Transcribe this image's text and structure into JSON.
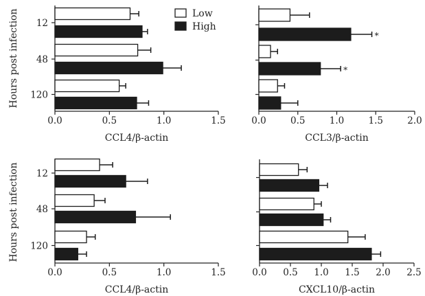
{
  "figure": {
    "ylabel": "Hours post infection",
    "legend": {
      "items": [
        "Low",
        "High"
      ],
      "placement": "top-left panel, upper right"
    }
  },
  "chart_data": [
    {
      "type": "bar",
      "orientation": "horizontal",
      "categories": [
        "12",
        "48",
        "120"
      ],
      "xlabel": "CCL4/β-actin",
      "ylabel": "Hours post infection",
      "xlim": [
        0,
        1.5
      ],
      "xticks": [
        "0.0",
        "0.5",
        "1.0",
        "1.5"
      ],
      "series": [
        {
          "name": "Low",
          "values": [
            0.69,
            0.76,
            0.59
          ],
          "errors": [
            0.08,
            0.12,
            0.06
          ]
        },
        {
          "name": "High",
          "values": [
            0.8,
            0.99,
            0.75
          ],
          "errors": [
            0.05,
            0.17,
            0.11
          ]
        }
      ],
      "annotations": []
    },
    {
      "type": "bar",
      "orientation": "horizontal",
      "categories": [
        "12",
        "48",
        "120"
      ],
      "xlabel": "CCL3/β-actin",
      "ylabel": "",
      "xlim": [
        0,
        2.0
      ],
      "xticks": [
        "0.0",
        "0.5",
        "1.0",
        "1.5",
        "2.0"
      ],
      "series": [
        {
          "name": "Low",
          "values": [
            0.4,
            0.15,
            0.24
          ],
          "errors": [
            0.25,
            0.09,
            0.09
          ]
        },
        {
          "name": "High",
          "values": [
            1.18,
            0.79,
            0.28
          ],
          "errors": [
            0.27,
            0.26,
            0.22
          ]
        }
      ],
      "annotations": [
        {
          "text": "*",
          "category": "12",
          "series": "High"
        },
        {
          "text": "*",
          "category": "48",
          "series": "High"
        }
      ]
    },
    {
      "type": "bar",
      "orientation": "horizontal",
      "categories": [
        "12",
        "48",
        "120"
      ],
      "xlabel": "CCL4/β-actin",
      "ylabel": "Hours post infection",
      "xlim": [
        0,
        1.5
      ],
      "xticks": [
        "0.0",
        "0.5",
        "1.0",
        "1.5"
      ],
      "series": [
        {
          "name": "Low",
          "values": [
            0.41,
            0.36,
            0.29
          ],
          "errors": [
            0.12,
            0.1,
            0.08
          ]
        },
        {
          "name": "High",
          "values": [
            0.65,
            0.74,
            0.21
          ],
          "errors": [
            0.2,
            0.32,
            0.08
          ]
        }
      ],
      "annotations": []
    },
    {
      "type": "bar",
      "orientation": "horizontal",
      "categories": [
        "12",
        "48",
        "120"
      ],
      "xlabel": "CXCL10/β-actin",
      "ylabel": "",
      "xlim": [
        0,
        2.5
      ],
      "xticks": [
        "0.0",
        "0.5",
        "1.0",
        "1.5",
        "2.0",
        "2.5"
      ],
      "series": [
        {
          "name": "Low",
          "values": [
            0.63,
            0.88,
            1.43
          ],
          "errors": [
            0.14,
            0.12,
            0.28
          ]
        },
        {
          "name": "High",
          "values": [
            0.96,
            1.03,
            1.81
          ],
          "errors": [
            0.14,
            0.12,
            0.15
          ]
        }
      ],
      "annotations": []
    }
  ]
}
